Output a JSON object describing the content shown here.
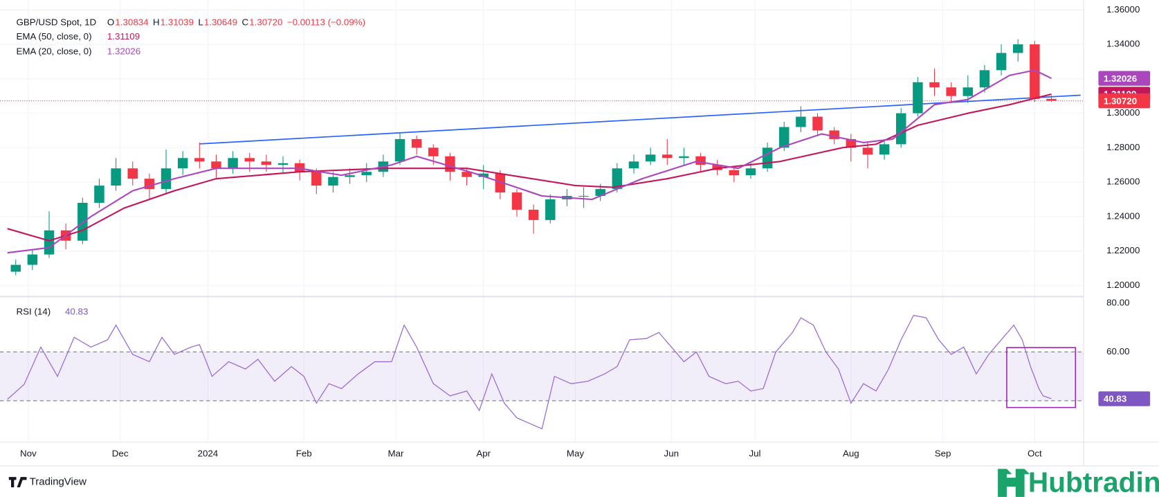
{
  "chart_data": [
    {
      "type": "candlestick",
      "title": "GBP/USD Spot, 1D",
      "ohlc_legend": [
        {
          "label": "O",
          "value": "1.30834"
        },
        {
          "label": "H",
          "value": "1.31039"
        },
        {
          "label": "L",
          "value": "1.30649"
        },
        {
          "label": "C",
          "value": "1.30720"
        }
      ],
      "change": "−0.00113 (−0.09%)",
      "last_price_label": "1.30720",
      "up_color": "#089981",
      "down_color": "#f23645",
      "x": [
        2,
        6,
        10,
        14,
        18,
        22,
        26,
        30,
        34,
        38,
        42,
        46,
        50,
        54,
        58,
        62,
        66,
        70,
        74,
        78,
        82,
        86,
        90,
        94,
        98,
        102,
        106,
        110,
        114,
        118,
        122,
        126,
        130,
        134,
        138,
        142,
        146,
        150,
        154,
        158,
        162,
        166,
        170,
        174,
        178,
        182,
        186,
        190,
        194,
        198,
        202,
        206,
        210,
        214,
        218,
        222,
        226,
        230,
        234,
        238,
        242,
        246,
        250
      ],
      "open": [
        1.208,
        1.212,
        1.218,
        1.232,
        1.226,
        1.248,
        1.258,
        1.268,
        1.262,
        1.256,
        1.268,
        1.274,
        1.272,
        1.268,
        1.274,
        1.272,
        1.27,
        1.271,
        1.266,
        1.258,
        1.263,
        1.264,
        1.266,
        1.272,
        1.285,
        1.28,
        1.275,
        1.266,
        1.263,
        1.265,
        1.254,
        1.244,
        1.238,
        1.25,
        1.252,
        1.252,
        1.256,
        1.268,
        1.272,
        1.276,
        1.274,
        1.275,
        1.27,
        1.267,
        1.264,
        1.268,
        1.28,
        1.292,
        1.298,
        1.29,
        1.285,
        1.28,
        1.276,
        1.282,
        1.3,
        1.318,
        1.315,
        1.31,
        1.315,
        1.325,
        1.335,
        1.34,
        1.30834
      ],
      "high": [
        1.215,
        1.221,
        1.243,
        1.236,
        1.251,
        1.262,
        1.274,
        1.272,
        1.265,
        1.279,
        1.278,
        1.283,
        1.276,
        1.278,
        1.277,
        1.276,
        1.275,
        1.273,
        1.268,
        1.266,
        1.268,
        1.271,
        1.276,
        1.289,
        1.287,
        1.282,
        1.277,
        1.268,
        1.27,
        1.267,
        1.256,
        1.247,
        1.253,
        1.256,
        1.257,
        1.259,
        1.271,
        1.276,
        1.28,
        1.285,
        1.28,
        1.277,
        1.273,
        1.269,
        1.271,
        1.283,
        1.295,
        1.304,
        1.3,
        1.292,
        1.288,
        1.283,
        1.285,
        1.303,
        1.321,
        1.326,
        1.318,
        1.322,
        1.328,
        1.34,
        1.343,
        1.342,
        1.31039
      ],
      "low": [
        1.206,
        1.209,
        1.216,
        1.221,
        1.224,
        1.245,
        1.255,
        1.258,
        1.25,
        1.253,
        1.264,
        1.268,
        1.262,
        1.265,
        1.266,
        1.266,
        1.265,
        1.261,
        1.253,
        1.254,
        1.259,
        1.26,
        1.263,
        1.27,
        1.276,
        1.27,
        1.261,
        1.258,
        1.256,
        1.25,
        1.24,
        1.23,
        1.236,
        1.246,
        1.245,
        1.249,
        1.254,
        1.265,
        1.27,
        1.27,
        1.27,
        1.266,
        1.264,
        1.26,
        1.262,
        1.266,
        1.278,
        1.289,
        1.287,
        1.282,
        1.272,
        1.268,
        1.273,
        1.28,
        1.298,
        1.31,
        1.306,
        1.306,
        1.312,
        1.322,
        1.33,
        1.3065,
        1.30649
      ],
      "close": [
        1.212,
        1.218,
        1.232,
        1.226,
        1.248,
        1.258,
        1.268,
        1.262,
        1.256,
        1.268,
        1.274,
        1.272,
        1.268,
        1.274,
        1.272,
        1.27,
        1.271,
        1.266,
        1.258,
        1.263,
        1.264,
        1.266,
        1.272,
        1.285,
        1.28,
        1.275,
        1.266,
        1.263,
        1.265,
        1.254,
        1.244,
        1.238,
        1.25,
        1.252,
        1.252,
        1.256,
        1.268,
        1.272,
        1.276,
        1.274,
        1.275,
        1.27,
        1.267,
        1.264,
        1.268,
        1.28,
        1.292,
        1.298,
        1.29,
        1.285,
        1.28,
        1.276,
        1.282,
        1.3,
        1.318,
        1.315,
        1.31,
        1.315,
        1.325,
        1.335,
        1.34,
        1.30834,
        1.3072
      ],
      "series": [
        {
          "name": "EMA (50, close, 0)",
          "color": "#c2185b",
          "value_label": "1.31109",
          "x": [
            0,
            10,
            18,
            28,
            40,
            50,
            70,
            90,
            110,
            136,
            145,
            158,
            170,
            185,
            200,
            208,
            218,
            230,
            240,
            250
          ],
          "values": [
            1.233,
            1.226,
            1.232,
            1.245,
            1.255,
            1.262,
            1.266,
            1.268,
            1.268,
            1.258,
            1.257,
            1.262,
            1.268,
            1.272,
            1.28,
            1.282,
            1.293,
            1.3,
            1.305,
            1.31109
          ]
        },
        {
          "name": "EMA (20, close, 0)",
          "color": "#ab47bc",
          "value_label": "1.32026",
          "x": [
            0,
            10,
            20,
            30,
            40,
            50,
            70,
            80,
            92,
            98,
            112,
            128,
            140,
            152,
            165,
            175,
            185,
            195,
            205,
            212,
            222,
            230,
            240,
            246,
            250
          ],
          "values": [
            1.219,
            1.222,
            1.24,
            1.255,
            1.262,
            1.268,
            1.268,
            1.264,
            1.27,
            1.275,
            1.265,
            1.252,
            1.25,
            1.262,
            1.272,
            1.268,
            1.28,
            1.288,
            1.283,
            1.285,
            1.305,
            1.308,
            1.322,
            1.325,
            1.32026
          ]
        }
      ],
      "trendline": {
        "color": "#2962ff",
        "x": [
          46,
          257
        ],
        "values": [
          1.2822,
          1.3105
        ]
      },
      "xlim": [
        0,
        257
      ],
      "ylim": [
        1.194,
        1.364
      ],
      "yticks": [
        {
          "value": 1.2,
          "label": "1.20000"
        },
        {
          "value": 1.22,
          "label": "1.22000"
        },
        {
          "value": 1.24,
          "label": "1.24000"
        },
        {
          "value": 1.26,
          "label": "1.26000"
        },
        {
          "value": 1.28,
          "label": "1.28000"
        },
        {
          "value": 1.3,
          "label": "1.30000"
        },
        {
          "value": 1.32,
          "label": "1.32000"
        },
        {
          "value": 1.34,
          "label": "1.34000"
        },
        {
          "value": 1.36,
          "label": "1.36000"
        }
      ],
      "xticks": [
        {
          "value": 5,
          "label": "Nov"
        },
        {
          "value": 27,
          "label": "Dec"
        },
        {
          "value": 48,
          "label": "2024"
        },
        {
          "value": 71,
          "label": "Feb"
        },
        {
          "value": 93,
          "label": "Mar"
        },
        {
          "value": 114,
          "label": "Apr"
        },
        {
          "value": 136,
          "label": "May"
        },
        {
          "value": 159,
          "label": "Jun"
        },
        {
          "value": 179,
          "label": "Jul"
        },
        {
          "value": 202,
          "label": "Aug"
        },
        {
          "value": 224,
          "label": "Sep"
        },
        {
          "value": 246,
          "label": "Oct"
        }
      ],
      "grid": true
    },
    {
      "type": "line",
      "title": "RSI (14)",
      "value_label": "40.83",
      "color": "#9b6bd6",
      "x": [
        0,
        4,
        8,
        12,
        16,
        20,
        24,
        26,
        30,
        34,
        37,
        40,
        44,
        46,
        49,
        53,
        57,
        60,
        64,
        68,
        71,
        74,
        77,
        80,
        84,
        88,
        92,
        95,
        98,
        102,
        106,
        110,
        113,
        116,
        119,
        122,
        126,
        128,
        131,
        135,
        139,
        143,
        146,
        149,
        153,
        156,
        159,
        162,
        165,
        168,
        172,
        175,
        178,
        181,
        184,
        188,
        190,
        193,
        196,
        199,
        202,
        205,
        208,
        211,
        214,
        217,
        220,
        223,
        226,
        229,
        232,
        235,
        238,
        241,
        243,
        245,
        247,
        248,
        250
      ],
      "values": [
        40.6,
        46.7,
        62,
        50,
        66,
        62,
        65,
        71,
        59,
        56,
        66,
        59,
        62,
        63,
        50,
        56,
        53,
        57,
        48,
        54,
        50,
        39,
        47,
        45,
        51,
        56,
        56,
        71,
        62,
        47,
        42,
        44,
        36,
        51,
        39,
        33,
        30,
        28.5,
        50,
        47,
        48,
        51,
        54,
        65,
        65.5,
        68,
        62,
        56,
        60,
        50,
        47,
        48,
        44,
        45,
        60,
        68,
        74,
        71,
        60,
        53,
        39,
        47,
        44,
        53,
        65,
        75,
        74,
        65,
        59,
        62,
        51,
        59,
        65,
        71,
        65,
        54,
        45,
        42,
        40.83
      ],
      "xlim": [
        0,
        257
      ],
      "ylim": [
        23,
        82.4
      ],
      "yticks": [
        {
          "value": 80,
          "label": "80.00"
        },
        {
          "value": 60,
          "label": "60.00"
        }
      ],
      "band": [
        40,
        60
      ]
    }
  ],
  "footer": {
    "brand": "TradingView",
    "watermark": "Hubtrading"
  }
}
